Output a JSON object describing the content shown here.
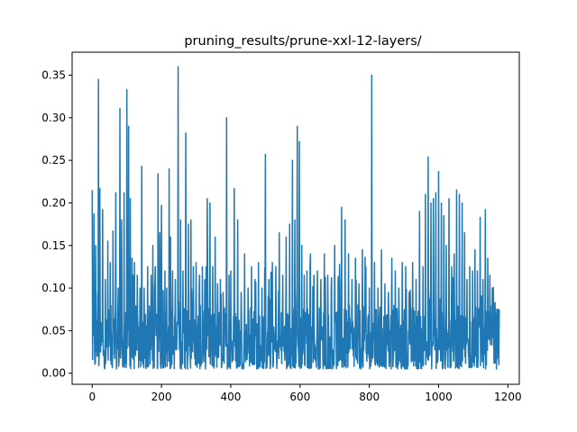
{
  "chart_data": {
    "type": "line",
    "title": "pruning_results/prune-xxl-12-layers/",
    "xlabel": "",
    "ylabel": "",
    "xlim": [
      -58,
      1233
    ],
    "ylim": [
      -0.013,
      0.377
    ],
    "xticks": [
      0,
      200,
      400,
      600,
      800,
      1000,
      1200
    ],
    "xtick_labels": [
      "0",
      "200",
      "400",
      "600",
      "800",
      "1000",
      "1200"
    ],
    "yticks": [
      0.0,
      0.05,
      0.1,
      0.15,
      0.2,
      0.25,
      0.3,
      0.35
    ],
    "ytick_labels": [
      "0.00",
      "0.05",
      "0.10",
      "0.15",
      "0.20",
      "0.25",
      "0.30",
      "0.35"
    ],
    "grid": false,
    "color": "#1f77b4",
    "series": [
      {
        "x_start": 0,
        "x_end": 1175,
        "n_points": 1176,
        "peaks": [
          [
            0,
            0.215
          ],
          [
            5,
            0.187
          ],
          [
            10,
            0.15
          ],
          [
            18,
            0.345
          ],
          [
            22,
            0.217
          ],
          [
            30,
            0.192
          ],
          [
            38,
            0.11
          ],
          [
            45,
            0.155
          ],
          [
            52,
            0.13
          ],
          [
            60,
            0.167
          ],
          [
            68,
            0.212
          ],
          [
            75,
            0.1
          ],
          [
            80,
            0.311
          ],
          [
            85,
            0.18
          ],
          [
            92,
            0.212
          ],
          [
            100,
            0.333
          ],
          [
            105,
            0.29
          ],
          [
            110,
            0.205
          ],
          [
            115,
            0.135
          ],
          [
            122,
            0.13
          ],
          [
            130,
            0.115
          ],
          [
            138,
            0.1
          ],
          [
            143,
            0.243
          ],
          [
            150,
            0.1
          ],
          [
            160,
            0.125
          ],
          [
            170,
            0.115
          ],
          [
            175,
            0.15
          ],
          [
            182,
            0.125
          ],
          [
            190,
            0.234
          ],
          [
            195,
            0.165
          ],
          [
            200,
            0.197
          ],
          [
            205,
            0.097
          ],
          [
            210,
            0.12
          ],
          [
            215,
            0.1
          ],
          [
            222,
            0.24
          ],
          [
            226,
            0.16
          ],
          [
            232,
            0.12
          ],
          [
            240,
            0.11
          ],
          [
            248,
            0.36
          ],
          [
            255,
            0.18
          ],
          [
            262,
            0.12
          ],
          [
            270,
            0.282
          ],
          [
            278,
            0.175
          ],
          [
            285,
            0.18
          ],
          [
            292,
            0.125
          ],
          [
            300,
            0.13
          ],
          [
            310,
            0.115
          ],
          [
            318,
            0.125
          ],
          [
            325,
            0.11
          ],
          [
            332,
            0.205
          ],
          [
            340,
            0.2
          ],
          [
            348,
            0.125
          ],
          [
            355,
            0.16
          ],
          [
            362,
            0.105
          ],
          [
            370,
            0.11
          ],
          [
            378,
            0.095
          ],
          [
            388,
            0.3
          ],
          [
            395,
            0.115
          ],
          [
            400,
            0.12
          ],
          [
            410,
            0.217
          ],
          [
            420,
            0.18
          ],
          [
            430,
            0.095
          ],
          [
            440,
            0.14
          ],
          [
            450,
            0.1
          ],
          [
            460,
            0.125
          ],
          [
            470,
            0.11
          ],
          [
            480,
            0.13
          ],
          [
            490,
            0.1
          ],
          [
            500,
            0.257
          ],
          [
            510,
            0.11
          ],
          [
            520,
            0.13
          ],
          [
            530,
            0.125
          ],
          [
            540,
            0.165
          ],
          [
            550,
            0.115
          ],
          [
            560,
            0.16
          ],
          [
            570,
            0.175
          ],
          [
            578,
            0.25
          ],
          [
            585,
            0.18
          ],
          [
            592,
            0.29
          ],
          [
            598,
            0.272
          ],
          [
            605,
            0.15
          ],
          [
            612,
            0.115
          ],
          [
            620,
            0.12
          ],
          [
            630,
            0.14
          ],
          [
            640,
            0.115
          ],
          [
            650,
            0.12
          ],
          [
            660,
            0.11
          ],
          [
            670,
            0.14
          ],
          [
            680,
            0.115
          ],
          [
            690,
            0.1
          ],
          [
            700,
            0.15
          ],
          [
            710,
            0.11
          ],
          [
            720,
            0.195
          ],
          [
            730,
            0.18
          ],
          [
            740,
            0.14
          ],
          [
            750,
            0.11
          ],
          [
            760,
            0.135
          ],
          [
            770,
            0.105
          ],
          [
            780,
            0.145
          ],
          [
            790,
            0.125
          ],
          [
            800,
            0.1
          ],
          [
            807,
            0.35
          ],
          [
            815,
            0.13
          ],
          [
            825,
            0.1
          ],
          [
            835,
            0.145
          ],
          [
            845,
            0.105
          ],
          [
            855,
            0.095
          ],
          [
            865,
            0.135
          ],
          [
            875,
            0.12
          ],
          [
            885,
            0.1
          ],
          [
            895,
            0.13
          ],
          [
            905,
            0.125
          ],
          [
            915,
            0.095
          ],
          [
            925,
            0.13
          ],
          [
            935,
            0.11
          ],
          [
            945,
            0.19
          ],
          [
            955,
            0.125
          ],
          [
            962,
            0.21
          ],
          [
            970,
            0.254
          ],
          [
            978,
            0.2
          ],
          [
            985,
            0.205
          ],
          [
            992,
            0.212
          ],
          [
            1000,
            0.237
          ],
          [
            1008,
            0.2
          ],
          [
            1015,
            0.185
          ],
          [
            1022,
            0.15
          ],
          [
            1030,
            0.205
          ],
          [
            1038,
            0.125
          ],
          [
            1045,
            0.14
          ],
          [
            1052,
            0.215
          ],
          [
            1060,
            0.21
          ],
          [
            1068,
            0.2
          ],
          [
            1075,
            0.165
          ],
          [
            1082,
            0.11
          ],
          [
            1090,
            0.125
          ],
          [
            1098,
            0.12
          ],
          [
            1105,
            0.145
          ],
          [
            1112,
            0.12
          ],
          [
            1120,
            0.183
          ],
          [
            1128,
            0.11
          ],
          [
            1135,
            0.192
          ],
          [
            1142,
            0.135
          ],
          [
            1148,
            0.115
          ],
          [
            1155,
            0.1
          ],
          [
            1162,
            0.08
          ],
          [
            1168,
            0.075
          ],
          [
            1175,
            0.075
          ]
        ],
        "baseline_min": 0.005,
        "baseline_max": 0.08
      }
    ]
  }
}
